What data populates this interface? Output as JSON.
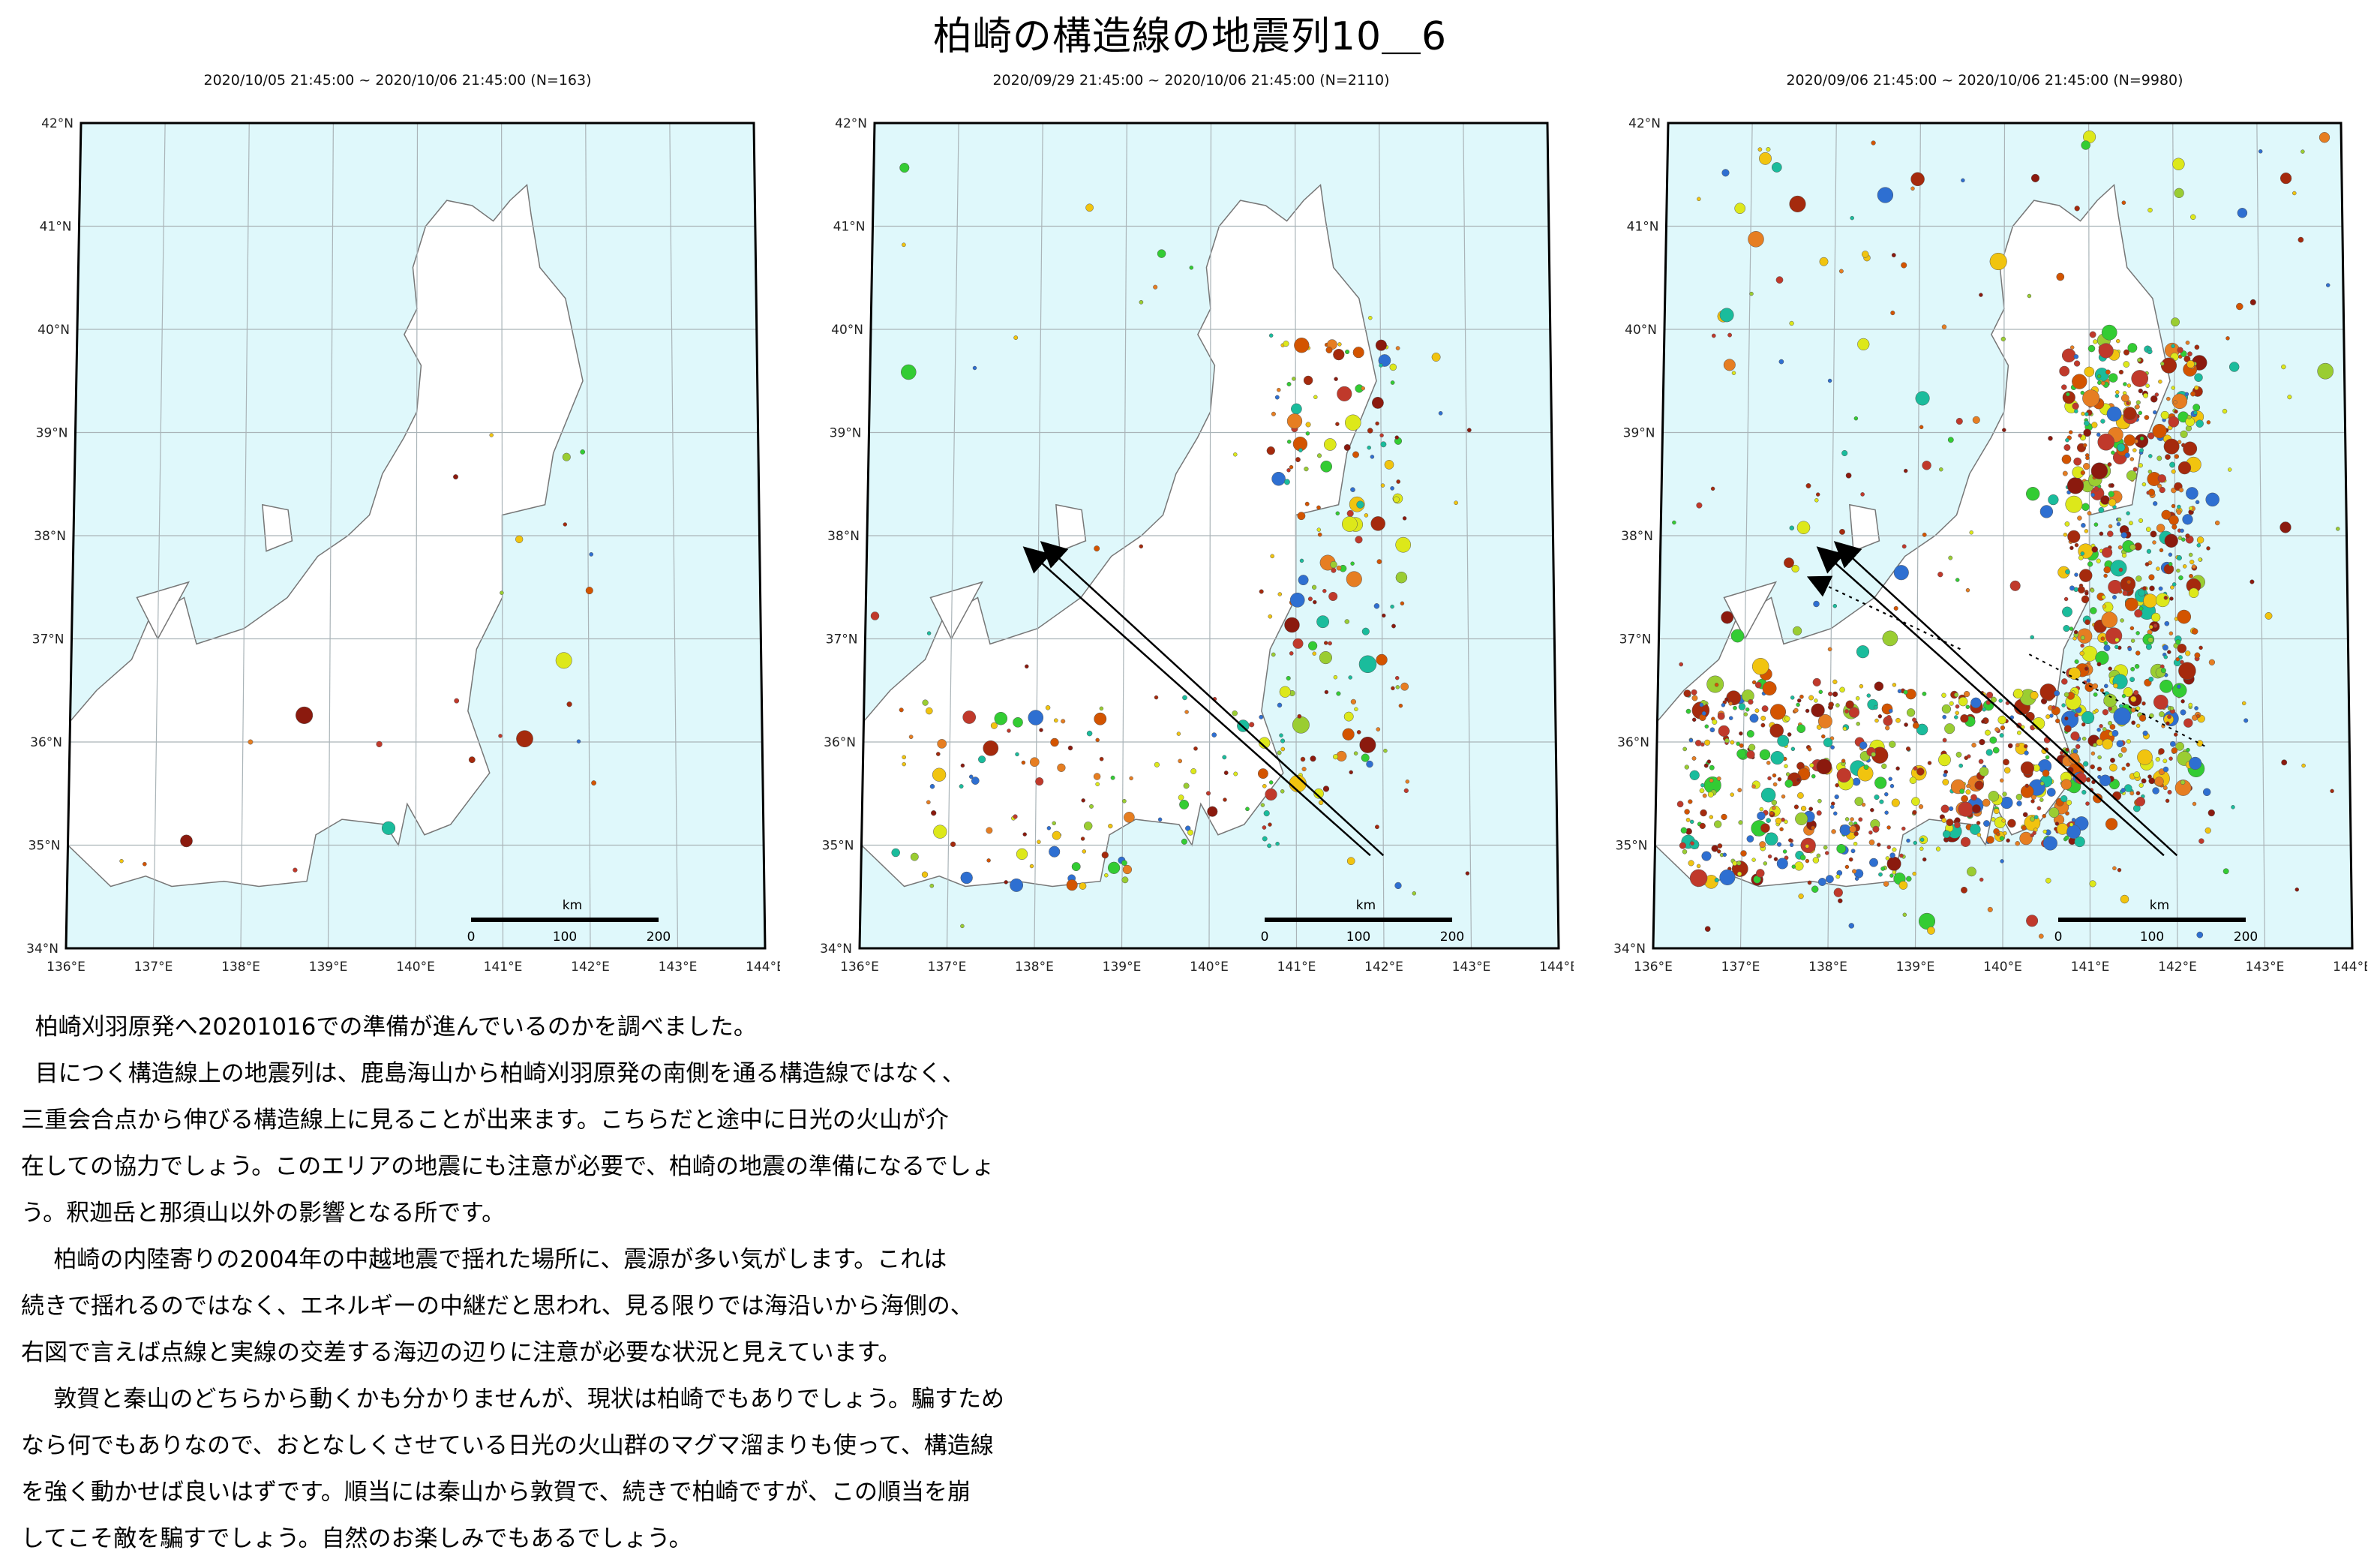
{
  "title": "柏崎の構造線の地震列10＿6",
  "panels": [
    {
      "id": "p1",
      "caption": "2020/10/05 21:45:00 ~ 2020/10/06 21:45:00 (N=163)",
      "density": 163
    },
    {
      "id": "p2",
      "caption": "2020/09/29 21:45:00 ~ 2020/10/06 21:45:00 (N=2110)",
      "density": 2110
    },
    {
      "id": "p3",
      "caption": "2020/09/06 21:45:00 ~ 2020/10/06 21:45:00 (N=9980)",
      "density": 9980
    }
  ],
  "map": {
    "lat_labels": [
      "42°N",
      "41°N",
      "40°N",
      "39°N",
      "38°N",
      "37°N",
      "36°N",
      "35°N",
      "34°N"
    ],
    "lon_labels": [
      "136°E",
      "137°E",
      "138°E",
      "139°E",
      "140°E",
      "141°E",
      "142°E",
      "143°E",
      "144°E"
    ],
    "scale_unit": "km",
    "scale_ticks": [
      "0",
      "100",
      "200"
    ],
    "colors": {
      "sea": "#dff8fb",
      "land": "#ffffff",
      "coast": "#777777",
      "grid": "#aab4b8"
    }
  },
  "paragraphs": [
    [
      "柏崎刈羽原発へ20201016での準備が進んでいるのかを調べました。"
    ],
    [
      "目につく構造線上の地震列は、鹿島海山から柏崎刈羽原発の南側を通る構造線ではなく、",
      "三重会合点から伸びる構造線上に見ることが出来ます。こちらだと途中に日光の火山が介",
      "在しての協力でしょう。このエリアの地震にも注意が必要で、柏崎の地震の準備になるでしょ",
      "う。釈迦岳と那須山以外の影響となる所です。"
    ],
    [
      "柏崎の内陸寄りの2004年の中越地震で揺れた場所に、震源が多い気がします。これは",
      "続きで揺れるのではなく、エネルギーの中継だと思われ、見る限りでは海沿いから海側の、",
      "右図で言えば点線と実線の交差する海辺の辺りに注意が必要な状況と見えています。"
    ],
    [
      "敦賀と秦山のどちらから動くかも分かりませんが、現状は柏崎でもありでしょう。騙すため",
      "なら何でもありなので、おとなしくさせている日光の火山群のマグマ溜まりも使って、構造線",
      "を強く動かせば良いはずです。順当には秦山から敦賀で、続きで柏崎ですが、この順当を崩",
      "してこそ敵を騙すでしょう。自然のお楽しみでもあるでしょう。"
    ]
  ]
}
